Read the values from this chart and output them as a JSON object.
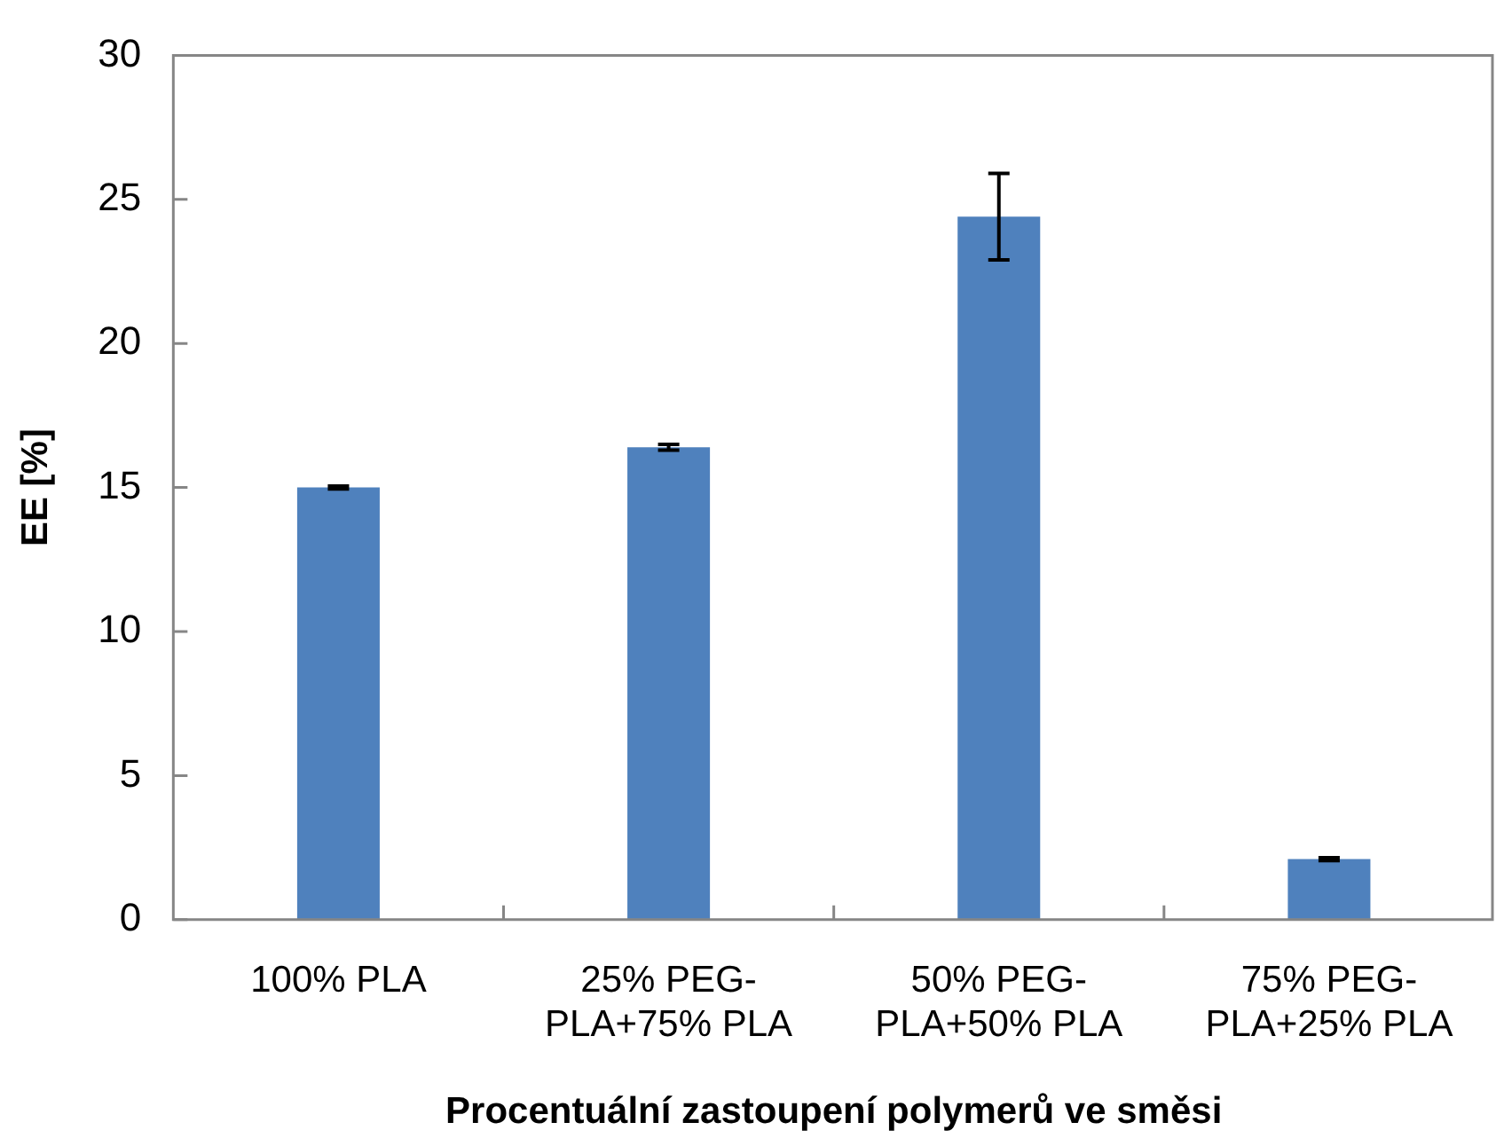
{
  "chart_data": {
    "type": "bar",
    "xlabel": "Procentuální zastoupení polymerů ve směsi",
    "ylabel": "EE [%]",
    "categories": [
      "100% PLA",
      "25% PEG-PLA+75% PLA",
      "50% PEG-PLA+50% PLA",
      "75% PEG-PLA+25% PLA"
    ],
    "values": [
      15.0,
      16.4,
      24.4,
      2.1
    ],
    "errors": [
      0.05,
      0.1,
      1.5,
      0.05
    ],
    "color": "#4f81bd",
    "ylim": [
      0,
      30
    ],
    "yticks": [
      0,
      5,
      10,
      15,
      20,
      25,
      30
    ],
    "grid": false,
    "legend": false
  }
}
